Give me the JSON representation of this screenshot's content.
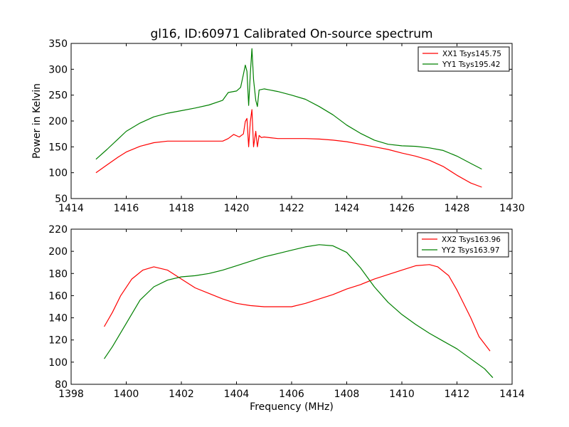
{
  "figure_title": "gl16, ID:60971 Calibrated On-source spectrum",
  "chart_data": [
    {
      "type": "line",
      "title": "gl16, ID:60971 Calibrated On-source spectrum",
      "xlabel": "",
      "ylabel": "Power in Kelvin",
      "xlim": [
        1414,
        1430
      ],
      "ylim": [
        50,
        350
      ],
      "xticks": [
        "1414",
        "1416",
        "1418",
        "1420",
        "1422",
        "1424",
        "1426",
        "1428",
        "1430"
      ],
      "yticks": [
        "50",
        "100",
        "150",
        "200",
        "250",
        "300",
        "350"
      ],
      "grid": false,
      "legend_position": "top-right",
      "series": [
        {
          "name": "XX1 Tsys145.75",
          "color": "#ff0000",
          "x": [
            1414.9,
            1415.3,
            1415.7,
            1416.0,
            1416.5,
            1417.0,
            1417.5,
            1418.0,
            1418.5,
            1419.0,
            1419.5,
            1419.7,
            1419.9,
            1420.1,
            1420.25,
            1420.32,
            1420.38,
            1420.44,
            1420.5,
            1420.56,
            1420.62,
            1420.7,
            1420.76,
            1420.82,
            1420.9,
            1421.0,
            1421.5,
            1422.0,
            1422.5,
            1423.0,
            1423.5,
            1424.0,
            1424.5,
            1425.0,
            1425.5,
            1426.0,
            1426.5,
            1427.0,
            1427.5,
            1428.0,
            1428.5,
            1428.9
          ],
          "y": [
            100,
            115,
            130,
            140,
            151,
            158,
            161,
            161,
            161,
            161,
            161,
            166,
            174,
            169,
            175,
            199,
            205,
            150,
            198,
            222,
            150,
            180,
            150,
            172,
            168,
            169,
            166,
            166,
            166,
            165,
            163,
            160,
            155,
            150,
            145,
            138,
            132,
            124,
            112,
            95,
            80,
            72
          ]
        },
        {
          "name": "YY1 Tsys195.42",
          "color": "#008000",
          "x": [
            1414.9,
            1415.3,
            1415.7,
            1416.0,
            1416.5,
            1417.0,
            1417.5,
            1418.0,
            1418.5,
            1419.0,
            1419.5,
            1419.7,
            1420.0,
            1420.15,
            1420.25,
            1420.32,
            1420.38,
            1420.44,
            1420.5,
            1420.56,
            1420.62,
            1420.7,
            1420.76,
            1420.82,
            1421.0,
            1421.5,
            1422.0,
            1422.5,
            1423.0,
            1423.5,
            1424.0,
            1424.5,
            1425.0,
            1425.5,
            1426.0,
            1426.5,
            1427.0,
            1427.5,
            1428.0,
            1428.5,
            1428.9
          ],
          "y": [
            126,
            145,
            165,
            180,
            196,
            208,
            215,
            220,
            225,
            231,
            240,
            255,
            258,
            265,
            290,
            308,
            296,
            230,
            290,
            340,
            280,
            240,
            228,
            260,
            262,
            257,
            250,
            242,
            228,
            212,
            192,
            176,
            163,
            155,
            152,
            151,
            148,
            143,
            132,
            118,
            107
          ]
        }
      ]
    },
    {
      "type": "line",
      "title": "",
      "xlabel": "Frequency (MHz)",
      "ylabel": "",
      "xlim": [
        1398,
        1414
      ],
      "ylim": [
        80,
        220
      ],
      "xticks": [
        "1398",
        "1400",
        "1402",
        "1404",
        "1406",
        "1408",
        "1410",
        "1412",
        "1414"
      ],
      "yticks": [
        "80",
        "100",
        "120",
        "140",
        "160",
        "180",
        "200",
        "220"
      ],
      "grid": false,
      "legend_position": "top-right",
      "series": [
        {
          "name": "XX2 Tsys163.96",
          "color": "#ff0000",
          "x": [
            1399.2,
            1399.5,
            1399.8,
            1400.2,
            1400.6,
            1401.0,
            1401.5,
            1402.0,
            1402.5,
            1403.0,
            1403.5,
            1404.0,
            1404.5,
            1405.0,
            1405.5,
            1406.0,
            1406.5,
            1407.0,
            1407.5,
            1408.0,
            1408.5,
            1409.0,
            1409.5,
            1410.0,
            1410.5,
            1411.0,
            1411.3,
            1411.7,
            1412.0,
            1412.5,
            1412.8,
            1413.2
          ],
          "y": [
            132,
            145,
            160,
            175,
            183,
            186,
            183,
            175,
            167,
            162,
            157,
            153,
            151,
            150,
            150,
            150,
            153,
            157,
            161,
            166,
            170,
            175,
            179,
            183,
            187,
            188,
            186,
            178,
            165,
            140,
            123,
            110
          ]
        },
        {
          "name": "YY2 Tsys163.97",
          "color": "#008000",
          "x": [
            1399.2,
            1399.5,
            1400.0,
            1400.5,
            1401.0,
            1401.5,
            1402.0,
            1402.5,
            1403.0,
            1403.5,
            1404.0,
            1404.5,
            1405.0,
            1405.5,
            1406.0,
            1406.5,
            1407.0,
            1407.5,
            1408.0,
            1408.5,
            1409.0,
            1409.5,
            1410.0,
            1410.5,
            1411.0,
            1411.5,
            1412.0,
            1412.5,
            1413.0,
            1413.3
          ],
          "y": [
            103,
            114,
            135,
            156,
            168,
            174,
            177,
            178,
            180,
            183,
            187,
            191,
            195,
            198,
            201,
            204,
            206,
            205,
            199,
            185,
            168,
            154,
            143,
            134,
            126,
            119,
            112,
            103,
            94,
            86
          ]
        }
      ]
    }
  ]
}
